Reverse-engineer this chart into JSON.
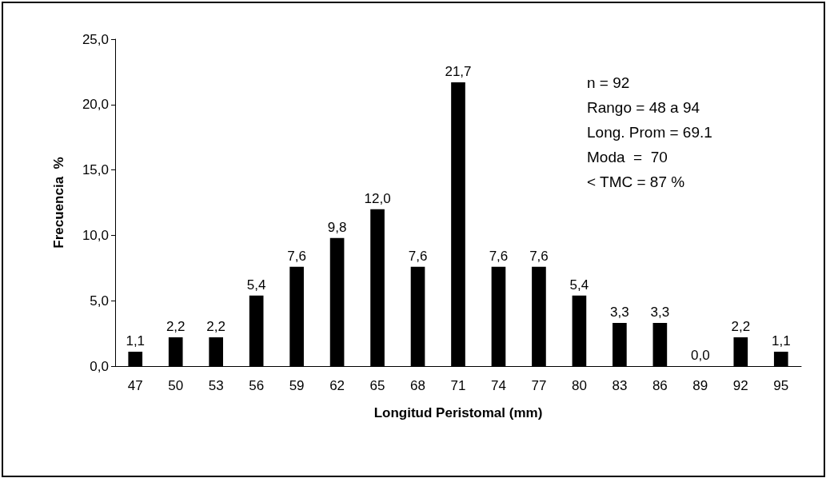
{
  "chart_data": {
    "type": "bar",
    "xlabel": "Longitud Peristomal (mm)",
    "ylabel": "Frecuencia  %",
    "categories": [
      "47",
      "50",
      "53",
      "56",
      "59",
      "62",
      "65",
      "68",
      "71",
      "74",
      "77",
      "80",
      "83",
      "86",
      "89",
      "92",
      "95"
    ],
    "values": [
      1.1,
      2.2,
      2.2,
      5.4,
      7.6,
      9.8,
      12.0,
      7.6,
      21.7,
      7.6,
      7.6,
      5.4,
      3.3,
      3.3,
      0.0,
      2.2,
      1.1
    ],
    "value_labels": [
      "1,1",
      "2,2",
      "2,2",
      "5,4",
      "7,6",
      "9,8",
      "12,0",
      "7,6",
      "21,7",
      "7,6",
      "7,6",
      "5,4",
      "3,3",
      "3,3",
      "0,0",
      "2,2",
      "1,1"
    ],
    "color": "#000000",
    "ylim": [
      0,
      25
    ],
    "yticks": [
      {
        "value": 0,
        "label": "0,0"
      },
      {
        "value": 5,
        "label": "5,0"
      },
      {
        "value": 10,
        "label": "10,0"
      },
      {
        "value": 15,
        "label": "15,0"
      },
      {
        "value": 20,
        "label": "20,0"
      },
      {
        "value": 25,
        "label": "25,0"
      }
    ],
    "grid": false,
    "annotations": [
      "n = 92",
      "Rango = 48 a 94",
      "Long. Prom = 69.1",
      "Moda  =  70",
      "< TMC = 87 %"
    ]
  }
}
